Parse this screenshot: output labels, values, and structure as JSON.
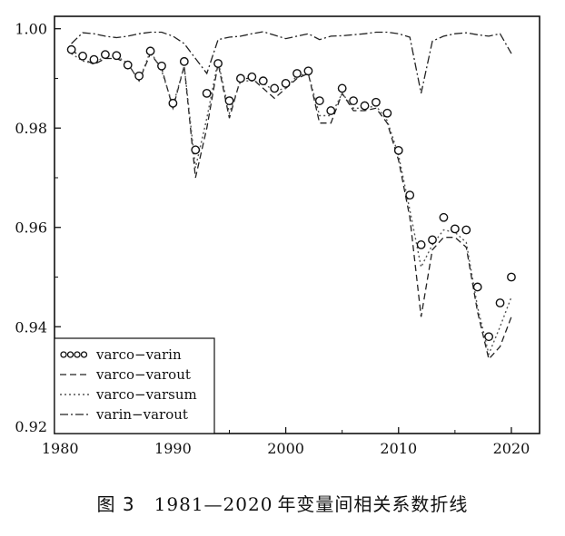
{
  "figure": {
    "caption_label": "图 3",
    "caption_years": "1981—2020",
    "caption_text": "年变量间相关系数折线"
  },
  "chart_data": {
    "type": "line",
    "xlim": [
      1979.5,
      2022.5
    ],
    "ylim": [
      0.9185,
      1.0025
    ],
    "x_ticks": [
      1980,
      1990,
      2000,
      2010,
      2020
    ],
    "y_ticks": [
      0.92,
      0.94,
      0.96,
      0.98,
      1.0
    ],
    "y_tick_labels": [
      "0.92",
      "0.94",
      "0.96",
      "0.98",
      "1.00"
    ],
    "grid": false,
    "legend_position": "bottom-left",
    "x": [
      1981,
      1982,
      1983,
      1984,
      1985,
      1986,
      1987,
      1988,
      1989,
      1990,
      1991,
      1992,
      1993,
      1994,
      1995,
      1996,
      1997,
      1998,
      1999,
      2000,
      2001,
      2002,
      2003,
      2004,
      2005,
      2006,
      2007,
      2008,
      2009,
      2010,
      2011,
      2012,
      2013,
      2014,
      2015,
      2016,
      2017,
      2018,
      2019,
      2020
    ],
    "series": [
      {
        "name": "varco−varin",
        "style": "circles",
        "values": [
          0.9958,
          0.9945,
          0.9938,
          0.9948,
          0.9946,
          0.9927,
          0.9905,
          0.9955,
          0.9925,
          0.985,
          0.9934,
          0.9756,
          0.987,
          0.993,
          0.9855,
          0.99,
          0.9903,
          0.9895,
          0.988,
          0.989,
          0.991,
          0.9915,
          0.9855,
          0.9835,
          0.988,
          0.9855,
          0.9845,
          0.9852,
          0.983,
          0.9755,
          0.9665,
          0.9565,
          0.9575,
          0.962,
          0.9597,
          0.9595,
          0.948,
          0.938,
          0.9448,
          0.95
        ]
      },
      {
        "name": "varco−varout",
        "style": "dashed",
        "values": [
          0.9958,
          0.994,
          0.9928,
          0.994,
          0.994,
          0.993,
          0.9895,
          0.995,
          0.992,
          0.984,
          0.9925,
          0.97,
          0.98,
          0.993,
          0.982,
          0.99,
          0.99,
          0.988,
          0.986,
          0.988,
          0.99,
          0.991,
          0.981,
          0.981,
          0.987,
          0.9835,
          0.9835,
          0.984,
          0.981,
          0.9735,
          0.962,
          0.942,
          0.9555,
          0.958,
          0.958,
          0.956,
          0.943,
          0.9335,
          0.936,
          0.942
        ]
      },
      {
        "name": "varco−varsum",
        "style": "dotted",
        "values": [
          0.995,
          0.9935,
          0.993,
          0.9945,
          0.9945,
          0.993,
          0.9895,
          0.9955,
          0.9915,
          0.9845,
          0.9925,
          0.972,
          0.982,
          0.9935,
          0.983,
          0.9895,
          0.9895,
          0.989,
          0.9875,
          0.988,
          0.9905,
          0.991,
          0.9825,
          0.9825,
          0.987,
          0.984,
          0.984,
          0.9845,
          0.9815,
          0.9745,
          0.9635,
          0.952,
          0.9565,
          0.9595,
          0.959,
          0.957,
          0.944,
          0.9345,
          0.94,
          0.946
        ]
      },
      {
        "name": "varin−varout",
        "style": "dashdot",
        "values": [
          0.997,
          0.9992,
          0.999,
          0.9985,
          0.9982,
          0.9985,
          0.999,
          0.9993,
          0.9993,
          0.9985,
          0.997,
          0.994,
          0.991,
          0.9978,
          0.9983,
          0.9985,
          0.999,
          0.9994,
          0.9987,
          0.998,
          0.9985,
          0.999,
          0.9978,
          0.9985,
          0.9986,
          0.9988,
          0.999,
          0.9993,
          0.9993,
          0.999,
          0.9983,
          0.987,
          0.9975,
          0.9985,
          0.999,
          0.9992,
          0.9988,
          0.9985,
          0.999,
          0.995
        ]
      }
    ]
  }
}
